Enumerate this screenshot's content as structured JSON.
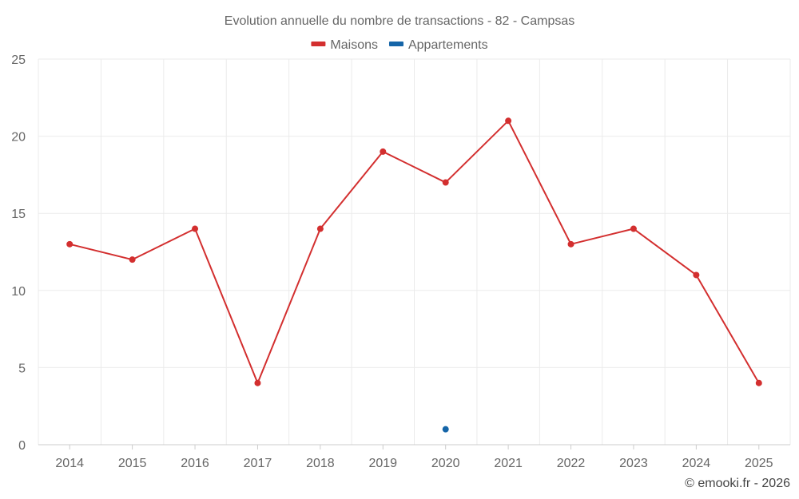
{
  "chart_data": {
    "type": "line",
    "title": "Evolution annuelle du nombre de transactions - 82 - Campsas",
    "categories": [
      "2014",
      "2015",
      "2016",
      "2017",
      "2018",
      "2019",
      "2020",
      "2021",
      "2022",
      "2023",
      "2024",
      "2025"
    ],
    "ylim": [
      0,
      25
    ],
    "yticks": [
      0,
      5,
      10,
      15,
      20,
      25
    ],
    "grid": true,
    "legend_position": "top-center",
    "series": [
      {
        "name": "Maisons",
        "color": "#d32f2f",
        "values": [
          13,
          12,
          14,
          4,
          14,
          19,
          17,
          21,
          13,
          14,
          11,
          4
        ]
      },
      {
        "name": "Appartements",
        "color": "#1565a8",
        "values": [
          null,
          null,
          null,
          null,
          null,
          null,
          1,
          null,
          null,
          null,
          null,
          null
        ]
      }
    ]
  },
  "credit": "© emooki.fr - 2026"
}
